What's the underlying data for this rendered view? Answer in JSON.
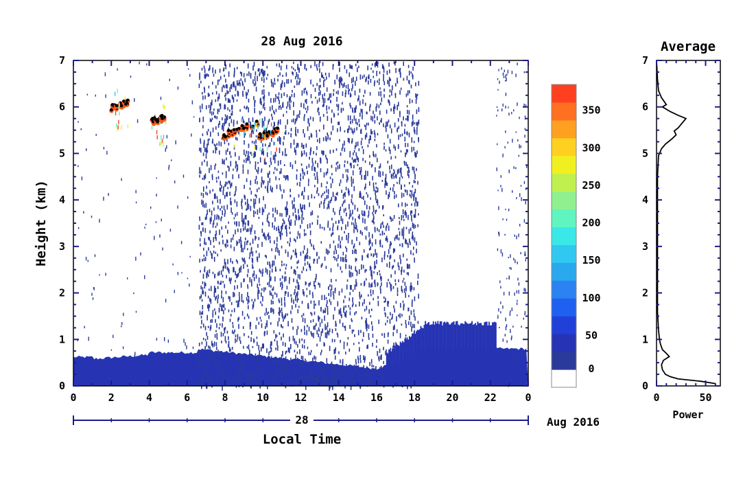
{
  "chart_data": [
    {
      "type": "heatmap",
      "title": "28 Aug 2016",
      "xlabel": "Local Time",
      "ylabel": "Height (km)",
      "x_ticks": [
        "0",
        "2",
        "4",
        "6",
        "8",
        "10",
        "12",
        "14",
        "16",
        "18",
        "20",
        "22",
        "0"
      ],
      "y_ticks": [
        "0",
        "1",
        "2",
        "3",
        "4",
        "5",
        "6",
        "7"
      ],
      "xlim": [
        0,
        24
      ],
      "ylim": [
        0,
        7
      ],
      "date_axis": {
        "day_label": "28",
        "month_label": "Aug 2016"
      },
      "colorbar": {
        "ticks": [
          "0",
          "50",
          "100",
          "150",
          "200",
          "250",
          "300",
          "350"
        ],
        "range": [
          0,
          380
        ],
        "colors": [
          "#ffffff",
          "#2a3a9a",
          "#2634b4",
          "#2040d8",
          "#2060f0",
          "#2b82f0",
          "#2aa8ee",
          "#30c8f0",
          "#3ae8e8",
          "#60f4c0",
          "#90f090",
          "#c0f050",
          "#f0f020",
          "#ffd020",
          "#ffa020",
          "#ff7020",
          "#ff4020"
        ]
      },
      "features": [
        {
          "name": "surface layer echo",
          "x_range": [
            0,
            24
          ],
          "height_km": [
            0,
            0.8
          ],
          "value": 40
        },
        {
          "name": "clear air scatter",
          "x_range": [
            6.6,
            18.2
          ],
          "height_km": [
            0,
            7
          ],
          "value": 30
        },
        {
          "name": "elevated layer",
          "x_range": [
            16.5,
            22.3
          ],
          "height_km": [
            0,
            1.4
          ],
          "value": 40
        },
        {
          "name": "cloud layer",
          "x_range": [
            2.0,
            2.9
          ],
          "height_km": [
            5.9,
            6.1
          ],
          "value": 350
        },
        {
          "name": "cloud layer",
          "x_range": [
            4.1,
            4.9
          ],
          "height_km": [
            5.6,
            5.8
          ],
          "value": 350
        },
        {
          "name": "cloud layer",
          "x_range": [
            7.8,
            9.8
          ],
          "height_km": [
            5.3,
            5.8
          ],
          "value": 350
        },
        {
          "name": "cloud layer",
          "x_range": [
            9.8,
            10.8
          ],
          "height_km": [
            5.3,
            5.5
          ],
          "value": 350
        }
      ]
    },
    {
      "type": "line",
      "title": "Average",
      "xlabel": "Power",
      "x_ticks": [
        "0",
        "50"
      ],
      "y_ticks": [
        "0",
        "1",
        "2",
        "3",
        "4",
        "5",
        "6",
        "7"
      ],
      "xlim": [
        0,
        65
      ],
      "ylim": [
        0,
        7
      ],
      "series": [
        {
          "color": "#000000",
          "points": [
            [
              60,
              0.05
            ],
            [
              45,
              0.1
            ],
            [
              22,
              0.15
            ],
            [
              14,
              0.2
            ],
            [
              9,
              0.25
            ],
            [
              6,
              0.35
            ],
            [
              5,
              0.45
            ],
            [
              7,
              0.55
            ],
            [
              13,
              0.63
            ],
            [
              10,
              0.7
            ],
            [
              6,
              0.78
            ],
            [
              4,
              0.9
            ],
            [
              3,
              1.0
            ],
            [
              2,
              1.2
            ],
            [
              1,
              1.6
            ],
            [
              1,
              3.0
            ],
            [
              1,
              4.5
            ],
            [
              2,
              4.95
            ],
            [
              5,
              5.1
            ],
            [
              9,
              5.2
            ],
            [
              12,
              5.25
            ],
            [
              16,
              5.32
            ],
            [
              20,
              5.4
            ],
            [
              18,
              5.48
            ],
            [
              22,
              5.55
            ],
            [
              26,
              5.65
            ],
            [
              30,
              5.75
            ],
            [
              22,
              5.82
            ],
            [
              14,
              5.9
            ],
            [
              6,
              6.0
            ],
            [
              10,
              6.05
            ],
            [
              5,
              6.2
            ],
            [
              2,
              6.35
            ],
            [
              1,
              6.6
            ],
            [
              0,
              7.0
            ]
          ]
        }
      ]
    }
  ]
}
